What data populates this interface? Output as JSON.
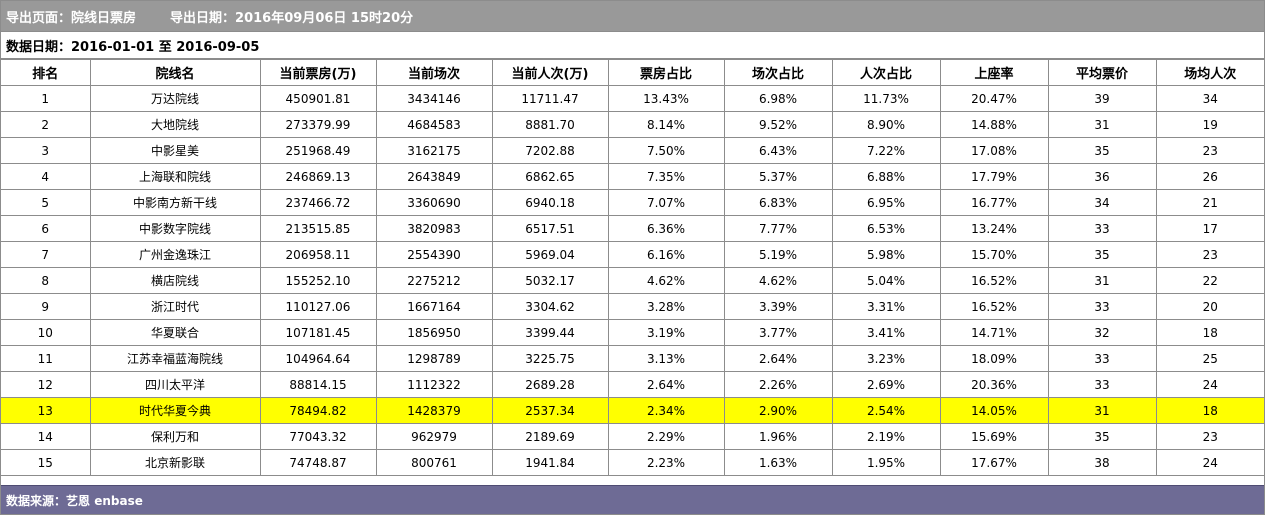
{
  "export": {
    "page_label": "导出页面：",
    "page_value": "院线日票房",
    "date_label": "导出日期：",
    "date_value": "2016年09月06日 15时20分"
  },
  "data_range": {
    "label": "数据日期：",
    "value": "2016-01-01 至 2016-09-05"
  },
  "table": {
    "columns": [
      "排名",
      "院线名",
      "当前票房(万)",
      "当前场次",
      "当前人次(万)",
      "票房占比",
      "场次占比",
      "人次占比",
      "上座率",
      "平均票价",
      "场均人次"
    ],
    "highlight_row_index": 12,
    "highlight_color": "#ffff00",
    "rows": [
      [
        "1",
        "万达院线",
        "450901.81",
        "3434146",
        "11711.47",
        "13.43%",
        "6.98%",
        "11.73%",
        "20.47%",
        "39",
        "34"
      ],
      [
        "2",
        "大地院线",
        "273379.99",
        "4684583",
        "8881.70",
        "8.14%",
        "9.52%",
        "8.90%",
        "14.88%",
        "31",
        "19"
      ],
      [
        "3",
        "中影星美",
        "251968.49",
        "3162175",
        "7202.88",
        "7.50%",
        "6.43%",
        "7.22%",
        "17.08%",
        "35",
        "23"
      ],
      [
        "4",
        "上海联和院线",
        "246869.13",
        "2643849",
        "6862.65",
        "7.35%",
        "5.37%",
        "6.88%",
        "17.79%",
        "36",
        "26"
      ],
      [
        "5",
        "中影南方新干线",
        "237466.72",
        "3360690",
        "6940.18",
        "7.07%",
        "6.83%",
        "6.95%",
        "16.77%",
        "34",
        "21"
      ],
      [
        "6",
        "中影数字院线",
        "213515.85",
        "3820983",
        "6517.51",
        "6.36%",
        "7.77%",
        "6.53%",
        "13.24%",
        "33",
        "17"
      ],
      [
        "7",
        "广州金逸珠江",
        "206958.11",
        "2554390",
        "5969.04",
        "6.16%",
        "5.19%",
        "5.98%",
        "15.70%",
        "35",
        "23"
      ],
      [
        "8",
        "横店院线",
        "155252.10",
        "2275212",
        "5032.17",
        "4.62%",
        "4.62%",
        "5.04%",
        "16.52%",
        "31",
        "22"
      ],
      [
        "9",
        "浙江时代",
        "110127.06",
        "1667164",
        "3304.62",
        "3.28%",
        "3.39%",
        "3.31%",
        "16.52%",
        "33",
        "20"
      ],
      [
        "10",
        "华夏联合",
        "107181.45",
        "1856950",
        "3399.44",
        "3.19%",
        "3.77%",
        "3.41%",
        "14.71%",
        "32",
        "18"
      ],
      [
        "11",
        "江苏幸福蓝海院线",
        "104964.64",
        "1298789",
        "3225.75",
        "3.13%",
        "2.64%",
        "3.23%",
        "18.09%",
        "33",
        "25"
      ],
      [
        "12",
        "四川太平洋",
        "88814.15",
        "1112322",
        "2689.28",
        "2.64%",
        "2.26%",
        "2.69%",
        "20.36%",
        "33",
        "24"
      ],
      [
        "13",
        "时代华夏今典",
        "78494.82",
        "1428379",
        "2537.34",
        "2.34%",
        "2.90%",
        "2.54%",
        "14.05%",
        "31",
        "18"
      ],
      [
        "14",
        "保利万和",
        "77043.32",
        "962979",
        "2189.69",
        "2.29%",
        "1.96%",
        "2.19%",
        "15.69%",
        "35",
        "23"
      ],
      [
        "15",
        "北京新影联",
        "74748.87",
        "800761",
        "1941.84",
        "2.23%",
        "1.63%",
        "1.95%",
        "17.67%",
        "38",
        "24"
      ]
    ]
  },
  "source": {
    "label": "数据来源：",
    "value": "艺恩 enbase"
  },
  "colors": {
    "export_bar": "#999999",
    "source_bar": "#6e6b95",
    "highlight": "#ffff00"
  }
}
